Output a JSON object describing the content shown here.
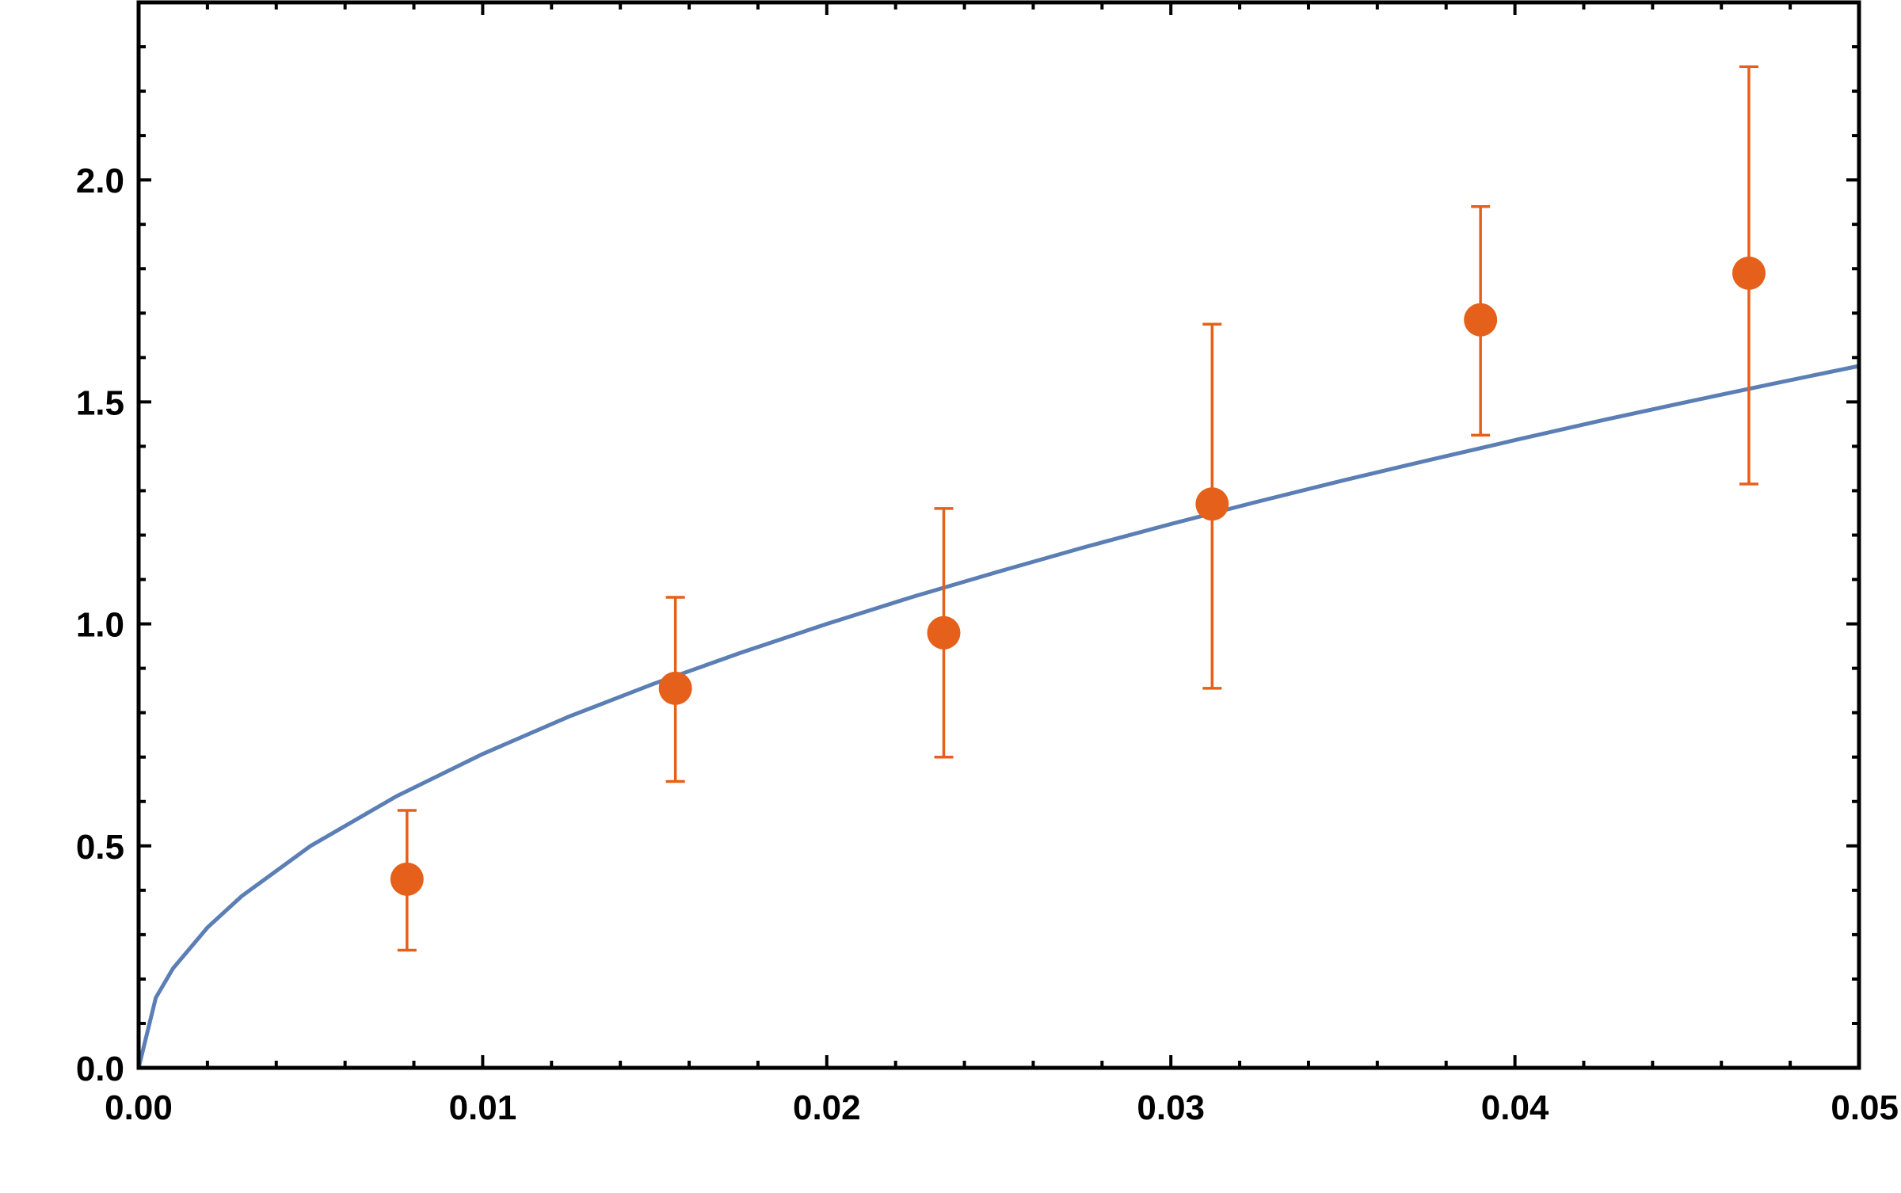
{
  "chart_data": {
    "type": "scatter",
    "title": "",
    "xlabel": "",
    "ylabel": "",
    "xlim": [
      0,
      0.05
    ],
    "ylim": [
      0,
      2.4
    ],
    "grid": false,
    "legend": "none",
    "x_ticks": [
      {
        "value": 0.0,
        "label": "0.00"
      },
      {
        "value": 0.01,
        "label": "0.01"
      },
      {
        "value": 0.02,
        "label": "0.02"
      },
      {
        "value": 0.03,
        "label": "0.03"
      },
      {
        "value": 0.04,
        "label": "0.04"
      },
      {
        "value": 0.05,
        "label": "0.05"
      }
    ],
    "y_ticks": [
      {
        "value": 0.0,
        "label": "0.0"
      },
      {
        "value": 0.5,
        "label": "0.5"
      },
      {
        "value": 1.0,
        "label": "1.0"
      },
      {
        "value": 1.5,
        "label": "1.5"
      },
      {
        "value": 2.0,
        "label": "2.0"
      }
    ],
    "series": [
      {
        "kind": "points-with-error-bars",
        "color": "#e5601a",
        "points": [
          {
            "x": 0.0078,
            "y": 0.425,
            "lo": 0.265,
            "hi": 0.58
          },
          {
            "x": 0.0156,
            "y": 0.855,
            "lo": 0.645,
            "hi": 1.06
          },
          {
            "x": 0.0234,
            "y": 0.98,
            "lo": 0.7,
            "hi": 1.26
          },
          {
            "x": 0.0312,
            "y": 1.27,
            "lo": 0.855,
            "hi": 1.675
          },
          {
            "x": 0.039,
            "y": 1.685,
            "lo": 1.425,
            "hi": 1.94
          },
          {
            "x": 0.0468,
            "y": 1.79,
            "lo": 1.315,
            "hi": 2.255
          }
        ]
      },
      {
        "kind": "fit-curve",
        "color": "#5b7fb5",
        "x": [
          0.0,
          0.0005,
          0.001,
          0.002,
          0.003,
          0.005,
          0.0075,
          0.01,
          0.0125,
          0.015,
          0.0175,
          0.02,
          0.0225,
          0.025,
          0.0275,
          0.03,
          0.0325,
          0.035,
          0.0375,
          0.04,
          0.0425,
          0.045,
          0.0475,
          0.05
        ],
        "y": [
          0.0,
          0.158,
          0.224,
          0.316,
          0.387,
          0.5,
          0.612,
          0.707,
          0.791,
          0.866,
          0.935,
          1.0,
          1.061,
          1.118,
          1.173,
          1.225,
          1.275,
          1.323,
          1.369,
          1.414,
          1.458,
          1.5,
          1.541,
          1.581
        ]
      }
    ]
  }
}
